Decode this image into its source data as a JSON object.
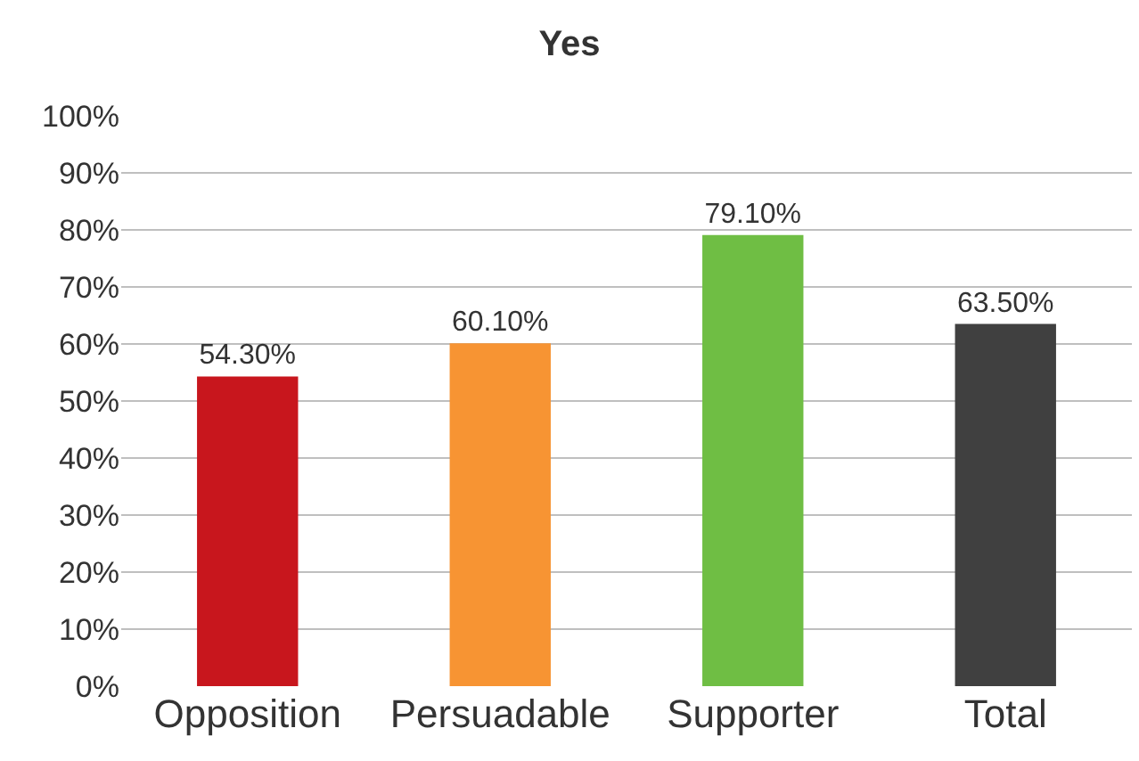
{
  "chart_data": {
    "type": "bar",
    "title": "Yes",
    "categories": [
      "Opposition",
      "Persuadable",
      "Supporter",
      "Total"
    ],
    "values": [
      54.3,
      60.1,
      79.1,
      63.5
    ],
    "colors": [
      "#c8161d",
      "#f79433",
      "#6fbe44",
      "#404040"
    ],
    "value_labels": [
      "54.30%",
      "60.10%",
      "79.10%",
      "63.50%"
    ],
    "ylim": [
      0,
      100
    ],
    "yticks": [
      {
        "value": 0,
        "label": "0%"
      },
      {
        "value": 10,
        "label": "10%"
      },
      {
        "value": 20,
        "label": "20%"
      },
      {
        "value": 30,
        "label": "30%"
      },
      {
        "value": 40,
        "label": "40%"
      },
      {
        "value": 50,
        "label": "50%"
      },
      {
        "value": 60,
        "label": "60%"
      },
      {
        "value": 70,
        "label": "70%"
      },
      {
        "value": 80,
        "label": "80%"
      },
      {
        "value": 90,
        "label": "90%"
      },
      {
        "value": 100,
        "label": "100%"
      }
    ],
    "grid": "y"
  }
}
